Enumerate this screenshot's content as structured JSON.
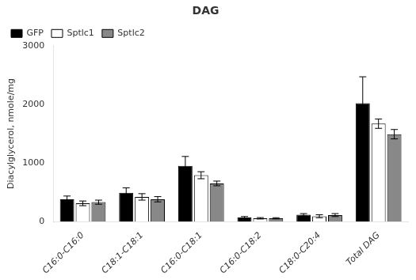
{
  "chart_data": {
    "type": "bar",
    "title": "DAG",
    "ylabel": "Diacylglycerol, nmole/mg",
    "categories": [
      "C16:0-C16:0",
      "C18:1-C18:1",
      "C16:0-C18:1",
      "C16:0-C18:2",
      "C18:0-C20:4",
      "Total DAG"
    ],
    "series": [
      {
        "name": "GFP",
        "color": "#000000",
        "values": [
          380,
          490,
          950,
          70,
          115,
          2020
        ],
        "errors": [
          55,
          85,
          160,
          15,
          20,
          450
        ]
      },
      {
        "name": "Sptlc1",
        "color": "#ffffff",
        "values": [
          310,
          420,
          790,
          55,
          90,
          1670
        ],
        "errors": [
          40,
          55,
          60,
          12,
          25,
          80
        ]
      },
      {
        "name": "Sptlc2",
        "color": "#888888",
        "values": [
          330,
          380,
          650,
          55,
          110,
          1490
        ],
        "errors": [
          35,
          45,
          40,
          10,
          25,
          80
        ]
      }
    ],
    "ylim": [
      0,
      3000
    ],
    "yticks": [
      0,
      1000,
      2000,
      3000
    ],
    "grid": false,
    "legend": "upper left"
  }
}
